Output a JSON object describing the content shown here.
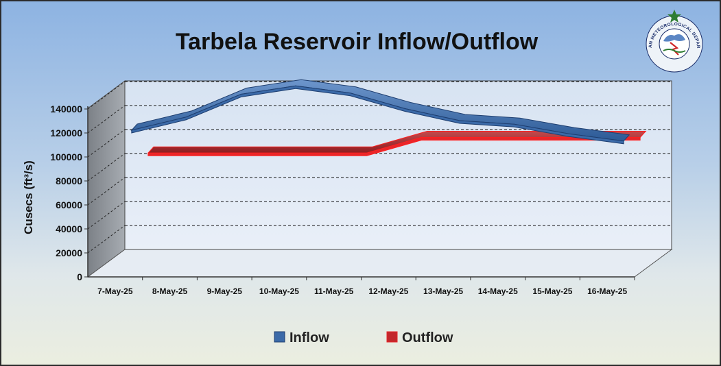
{
  "chart_data": {
    "type": "line",
    "title": "Tarbela Reservoir Inflow/Outflow",
    "ylabel": "Cusecs (ft³/s)",
    "xlabel": "",
    "categories": [
      "7-May-25",
      "8-May-25",
      "9-May-25",
      "10-May-25",
      "11-May-25",
      "12-May-25",
      "13-May-25",
      "14-May-25",
      "15-May-25",
      "16-May-25"
    ],
    "yticks": [
      "0",
      "20000",
      "40000",
      "60000",
      "80000",
      "100000",
      "120000",
      "140000"
    ],
    "ylim": [
      0,
      140000
    ],
    "grid": "horizontal dashed",
    "three_d": true,
    "legend_position": "bottom",
    "series": [
      {
        "name": "Inflow",
        "color": "#3b6aa8",
        "values": [
          104000,
          115000,
          134000,
          141000,
          135000,
          122000,
          112000,
          109000,
          101000,
          95000
        ]
      },
      {
        "name": "Outflow",
        "color": "#e8262a",
        "values": [
          85000,
          85000,
          85000,
          85000,
          85000,
          98000,
          98000,
          98000,
          98000,
          98000
        ]
      }
    ]
  },
  "logo": {
    "name": "pmd-logo-icon",
    "text": "PAKISTAN METEOROLOGICAL DEPARTMENT"
  }
}
